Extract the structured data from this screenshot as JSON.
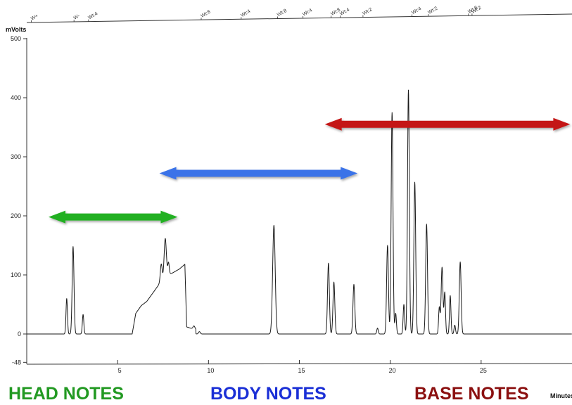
{
  "chart_data": {
    "type": "line",
    "y_unit_label": "mVolts",
    "x_unit_label": "Minutes",
    "xlim": [
      0,
      30
    ],
    "ylim": [
      -48,
      510
    ],
    "x_ticks": [
      5,
      10,
      15,
      20,
      25
    ],
    "y_ticks": [
      -48,
      0,
      100,
      200,
      300,
      400,
      500
    ],
    "grid": false,
    "baseline_mv": 0,
    "peaks": [
      {
        "x": 2.2,
        "y": 60,
        "w": 0.04
      },
      {
        "x": 2.55,
        "y": 148,
        "w": 0.05
      },
      {
        "x": 3.1,
        "y": 33,
        "w": 0.04
      },
      {
        "x": 7.4,
        "y": 30,
        "w": 0.05
      },
      {
        "x": 7.62,
        "y": 65,
        "w": 0.06
      },
      {
        "x": 7.8,
        "y": 20,
        "w": 0.04
      },
      {
        "x": 9.2,
        "y": 5,
        "w": 0.05
      },
      {
        "x": 9.5,
        "y": 4,
        "w": 0.05
      },
      {
        "x": 13.6,
        "y": 184,
        "w": 0.07
      },
      {
        "x": 16.6,
        "y": 120,
        "w": 0.05
      },
      {
        "x": 16.9,
        "y": 88,
        "w": 0.05
      },
      {
        "x": 18.0,
        "y": 84,
        "w": 0.05
      },
      {
        "x": 19.3,
        "y": 10,
        "w": 0.04
      },
      {
        "x": 19.85,
        "y": 150,
        "w": 0.05
      },
      {
        "x": 20.1,
        "y": 375,
        "w": 0.05
      },
      {
        "x": 20.3,
        "y": 35,
        "w": 0.04
      },
      {
        "x": 20.75,
        "y": 50,
        "w": 0.04
      },
      {
        "x": 21.0,
        "y": 413,
        "w": 0.05
      },
      {
        "x": 21.35,
        "y": 257,
        "w": 0.05
      },
      {
        "x": 22.0,
        "y": 186,
        "w": 0.05
      },
      {
        "x": 22.7,
        "y": 45,
        "w": 0.04
      },
      {
        "x": 22.85,
        "y": 113,
        "w": 0.05
      },
      {
        "x": 23.0,
        "y": 70,
        "w": 0.04
      },
      {
        "x": 23.3,
        "y": 65,
        "w": 0.04
      },
      {
        "x": 23.55,
        "y": 15,
        "w": 0.04
      },
      {
        "x": 23.85,
        "y": 122,
        "w": 0.05
      }
    ],
    "hump": {
      "x": [
        5.8,
        6.0,
        6.3,
        6.6,
        7.0,
        7.3,
        7.5,
        7.6,
        7.7,
        8.0,
        8.4,
        8.7,
        8.8,
        9.0,
        9.3
      ],
      "y": [
        0,
        35,
        48,
        55,
        72,
        85,
        92,
        96,
        100,
        103,
        110,
        118,
        12,
        10,
        8
      ]
    },
    "peak_tags": [
      {
        "x": 0.25,
        "text": "W+"
      },
      {
        "x": 2.6,
        "text": "W-"
      },
      {
        "x": 3.4,
        "text": "Wt:4"
      },
      {
        "x": 9.6,
        "text": "Wt:8"
      },
      {
        "x": 11.8,
        "text": "Wt:4"
      },
      {
        "x": 13.8,
        "text": "Wt:8"
      },
      {
        "x": 15.2,
        "text": "Wt:4"
      },
      {
        "x": 16.75,
        "text": "Wt:8"
      },
      {
        "x": 17.25,
        "text": "Wt:4"
      },
      {
        "x": 18.5,
        "text": "Wt:2"
      },
      {
        "x": 21.2,
        "text": "Wt:4"
      },
      {
        "x": 22.1,
        "text": "Wt:2"
      },
      {
        "x": 24.3,
        "text": "Wt:8"
      },
      {
        "x": 24.5,
        "text": "Wt:2"
      }
    ],
    "ranges": [
      {
        "x0": 1.2,
        "x1": 8.3,
        "y": 198,
        "color": "#22b022"
      },
      {
        "x0": 7.3,
        "x1": 18.2,
        "y": 272,
        "color": "#3a73e8"
      },
      {
        "x0": 16.4,
        "x1": 29.9,
        "y": 355,
        "color": "#c41818"
      }
    ],
    "note_labels": [
      {
        "text": "HEAD NOTES",
        "color": "#229922"
      },
      {
        "text": "BODY NOTES",
        "color": "#1a2fd6"
      },
      {
        "text": "BASE NOTES",
        "color": "#8b1010"
      }
    ]
  }
}
